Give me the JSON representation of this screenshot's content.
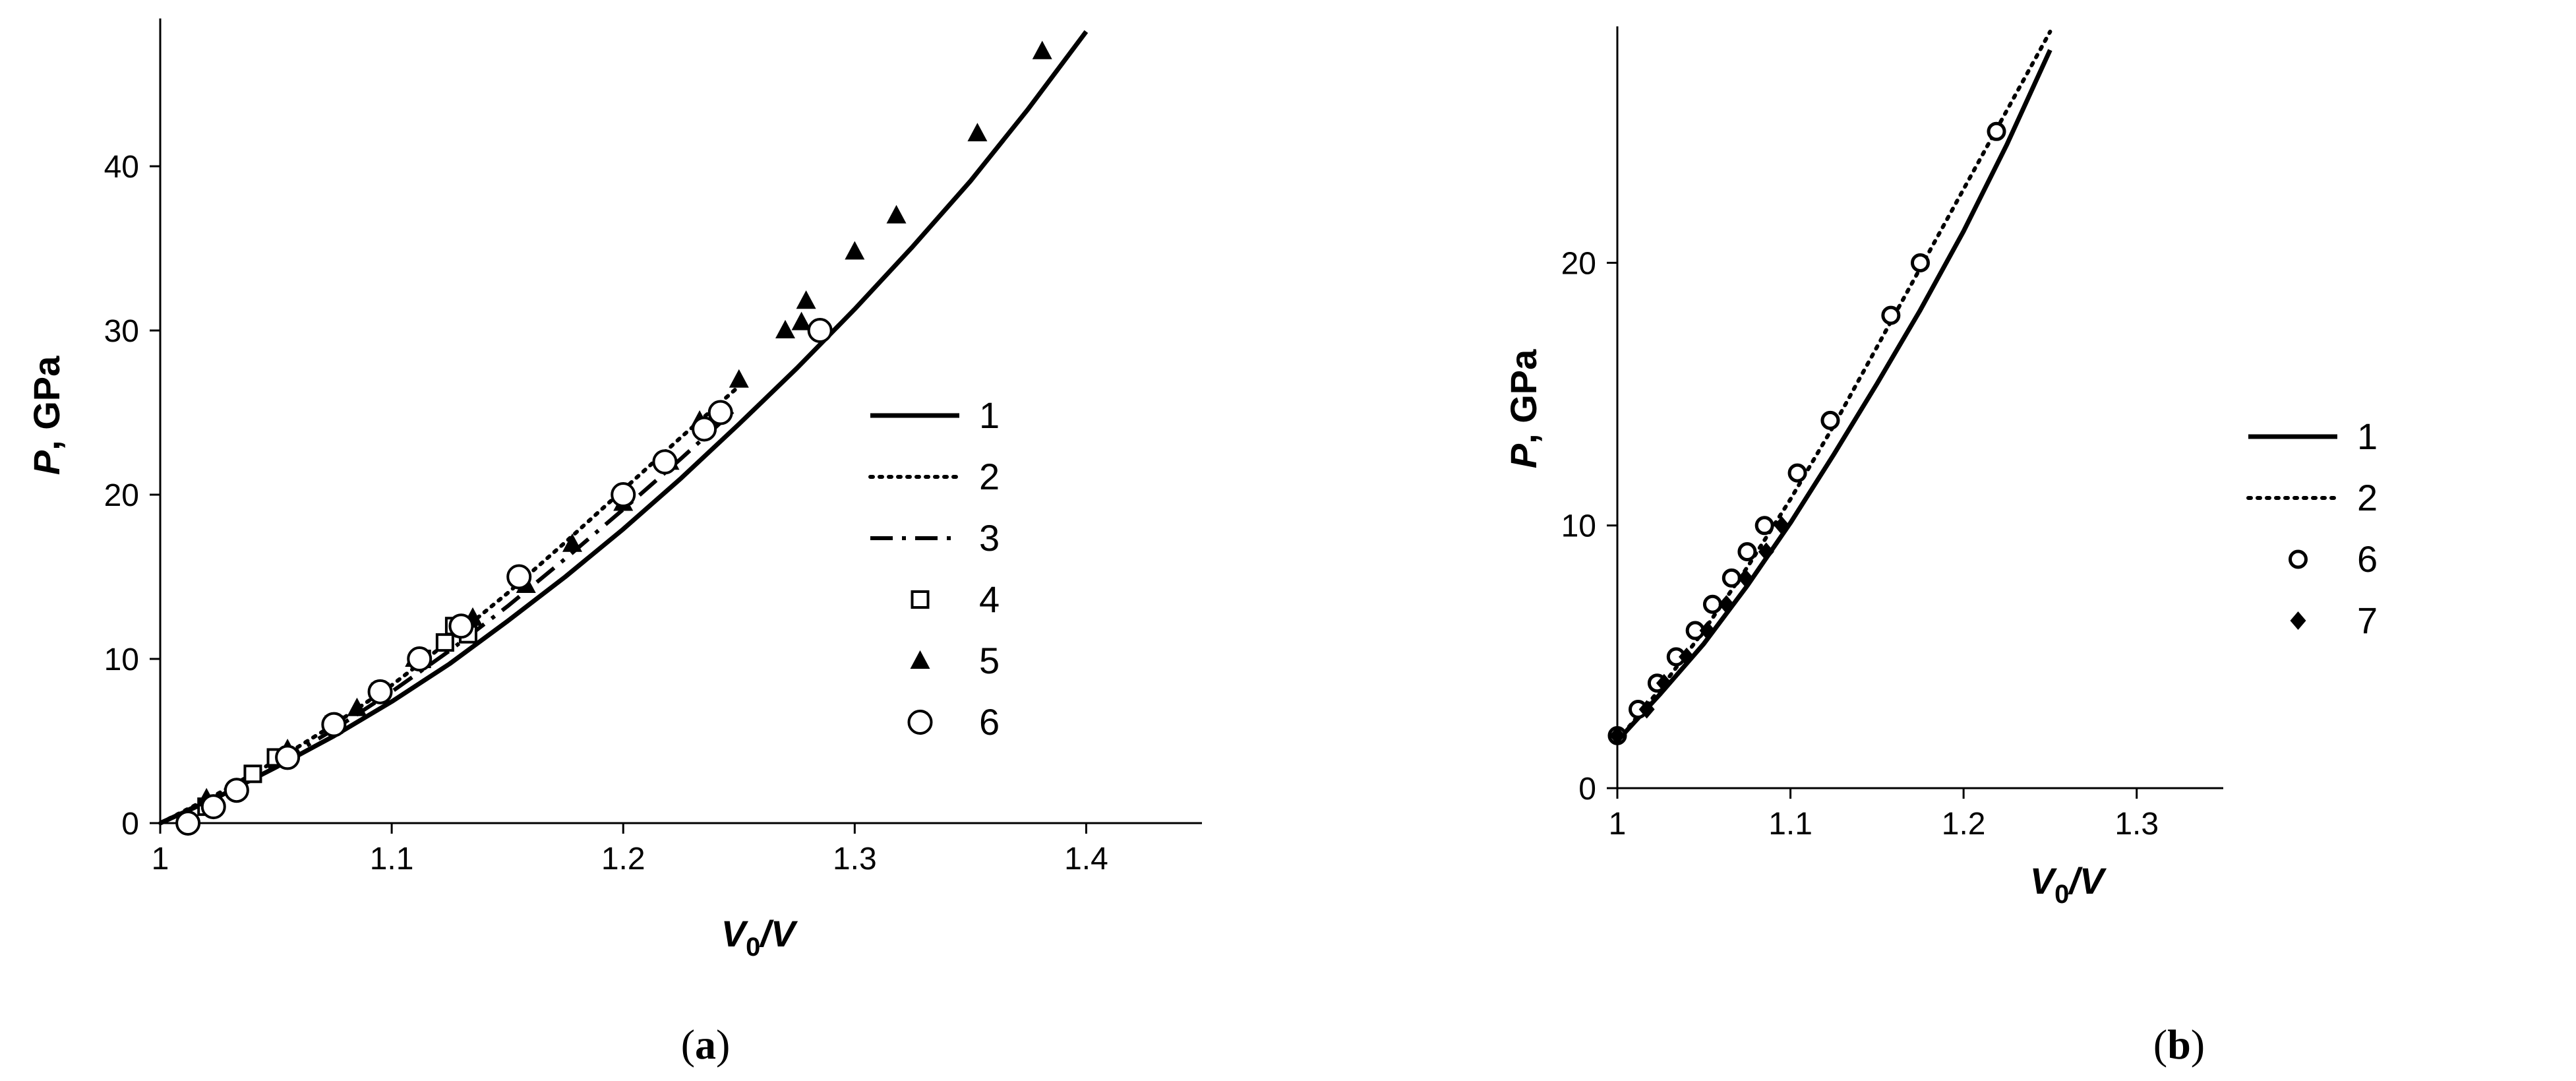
{
  "chart_data": [
    {
      "id": "a",
      "type": "scatter",
      "caption_label": "a",
      "caption_open": "(",
      "caption_close": ")",
      "xlabel": {
        "main": "V",
        "sub": "0",
        "rest": "/V"
      },
      "ylabel": {
        "main": "P",
        "rest": ", GPa"
      },
      "xlim": [
        1.0,
        1.45
      ],
      "ylim": [
        0,
        49
      ],
      "xticks": [
        1,
        1.1,
        1.2,
        1.3,
        1.4
      ],
      "xtick_labels": [
        "1",
        "1.1",
        "1.2",
        "1.3",
        "1.4"
      ],
      "yticks": [
        0,
        10,
        20,
        30,
        40
      ],
      "ytick_labels": [
        "0",
        "10",
        "20",
        "30",
        "40"
      ],
      "grid": false,
      "legend_position": "right",
      "series": [
        {
          "name": "1",
          "kind": "line",
          "style": "solid",
          "x": [
            1.0,
            1.025,
            1.05,
            1.075,
            1.1,
            1.125,
            1.15,
            1.175,
            1.2,
            1.225,
            1.25,
            1.275,
            1.3,
            1.325,
            1.35,
            1.375,
            1.4,
            1.4
          ],
          "y": [
            0.0,
            1.6,
            3.4,
            5.3,
            7.4,
            9.7,
            12.3,
            15.0,
            17.9,
            21.0,
            24.3,
            27.7,
            31.3,
            35.1,
            39.1,
            43.5,
            48.2,
            48.2
          ]
        },
        {
          "name": "2",
          "kind": "line",
          "style": "dotted",
          "x": [
            1.0,
            1.025,
            1.05,
            1.075,
            1.1,
            1.125,
            1.15,
            1.175,
            1.2,
            1.225,
            1.25
          ],
          "y": [
            0.0,
            1.8,
            3.8,
            6.0,
            8.4,
            11.1,
            14.0,
            17.1,
            20.3,
            23.5,
            26.6
          ]
        },
        {
          "name": "3",
          "kind": "line",
          "style": "dashdot",
          "x": [
            1.0,
            1.025,
            1.05,
            1.075,
            1.1,
            1.125,
            1.15,
            1.175,
            1.2,
            1.225,
            1.25
          ],
          "y": [
            0.0,
            1.7,
            3.6,
            5.7,
            8.0,
            10.5,
            13.2,
            16.1,
            19.1,
            22.2,
            25.4
          ]
        },
        {
          "name": "4",
          "kind": "marker",
          "marker": "square-open",
          "x": [
            1.02,
            1.04,
            1.05,
            1.075,
            1.095,
            1.113,
            1.123,
            1.127,
            1.133
          ],
          "y": [
            1.0,
            3.0,
            4.0,
            6.0,
            8.0,
            10.0,
            11.0,
            12.0,
            11.5
          ]
        },
        {
          "name": "5",
          "kind": "marker",
          "marker": "triangle-filled",
          "x": [
            1.02,
            1.055,
            1.085,
            1.11,
            1.135,
            1.158,
            1.178,
            1.2,
            1.22,
            1.233,
            1.25,
            1.27,
            1.277,
            1.279,
            1.3,
            1.318,
            1.353,
            1.381
          ],
          "y": [
            1.5,
            4.5,
            7.0,
            10.0,
            12.5,
            14.5,
            17.0,
            19.5,
            22.0,
            24.5,
            27.0,
            30.0,
            30.5,
            31.8,
            34.8,
            37.0,
            42.0,
            47.0
          ]
        },
        {
          "name": "6",
          "kind": "marker",
          "marker": "circle-open-large",
          "x": [
            1.012,
            1.023,
            1.033,
            1.055,
            1.075,
            1.095,
            1.112,
            1.13,
            1.155,
            1.2,
            1.218,
            1.235,
            1.242,
            1.285
          ],
          "y": [
            0.0,
            1.0,
            2.0,
            4.0,
            6.0,
            8.0,
            10.0,
            12.0,
            15.0,
            20.0,
            22.0,
            24.0,
            25.0,
            30.0
          ]
        }
      ]
    },
    {
      "id": "b",
      "type": "scatter",
      "caption_label": "b",
      "caption_open": "(",
      "caption_close": ")",
      "xlabel": {
        "main": "V",
        "sub": "0",
        "rest": "/V"
      },
      "ylabel": {
        "main": "P",
        "rest": ", GPa"
      },
      "xlim": [
        1.0,
        1.35
      ],
      "ylim": [
        0,
        29
      ],
      "xticks": [
        1,
        1.1,
        1.2,
        1.3
      ],
      "xtick_labels": [
        "1",
        "1.1",
        "1.2",
        "1.3"
      ],
      "yticks": [
        0,
        10,
        20
      ],
      "ytick_labels": [
        "0",
        "10",
        "20"
      ],
      "grid": false,
      "legend_position": "right",
      "series": [
        {
          "name": "1",
          "kind": "line",
          "style": "solid",
          "x": [
            1.0,
            1.025,
            1.05,
            1.075,
            1.1,
            1.125,
            1.15,
            1.175,
            1.2,
            1.225,
            1.25
          ],
          "y": [
            1.8,
            3.6,
            5.5,
            7.7,
            10.1,
            12.7,
            15.4,
            18.2,
            21.2,
            24.5,
            28.1
          ]
        },
        {
          "name": "2",
          "kind": "line",
          "style": "dotted",
          "x": [
            1.0,
            1.025,
            1.05,
            1.075,
            1.1,
            1.125,
            1.15,
            1.175,
            1.2,
            1.225,
            1.25
          ],
          "y": [
            1.8,
            3.8,
            6.0,
            8.4,
            11.0,
            13.8,
            16.8,
            19.8,
            22.8,
            25.8,
            28.8
          ]
        },
        {
          "name": "6",
          "kind": "marker",
          "marker": "circle-open",
          "x": [
            1.0,
            1.012,
            1.023,
            1.034,
            1.045,
            1.055,
            1.066,
            1.075,
            1.085,
            1.104,
            1.123,
            1.158,
            1.175,
            1.219
          ],
          "y": [
            2.0,
            3.0,
            4.0,
            5.0,
            6.0,
            7.0,
            8.0,
            9.0,
            10.0,
            12.0,
            14.0,
            18.0,
            20.0,
            25.0
          ]
        },
        {
          "name": "7",
          "kind": "marker",
          "marker": "diamond-filled",
          "x": [
            1.0,
            1.017,
            1.027,
            1.04,
            1.052,
            1.063,
            1.074,
            1.086,
            1.095
          ],
          "y": [
            2.0,
            3.0,
            4.0,
            5.0,
            6.0,
            7.0,
            8.0,
            9.0,
            10.0
          ]
        }
      ]
    }
  ]
}
